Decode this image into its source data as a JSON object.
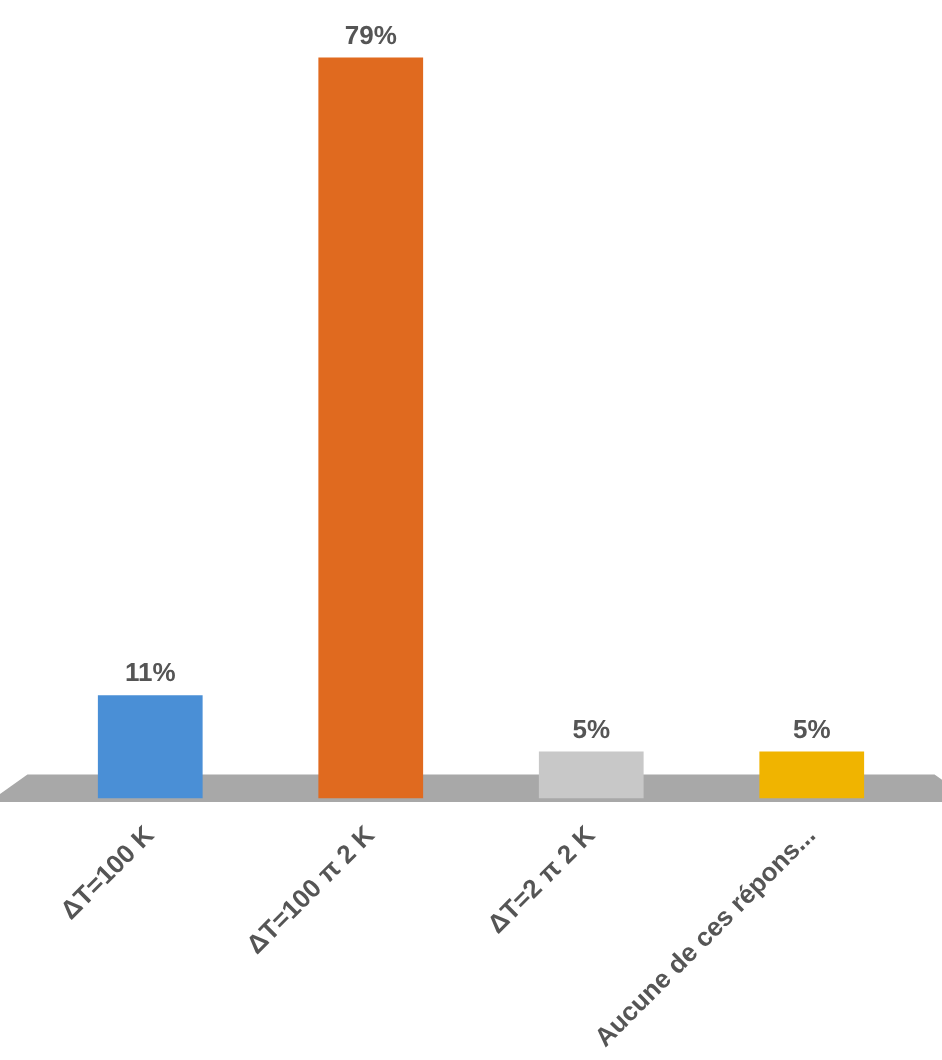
{
  "chart_data": {
    "type": "bar",
    "categories": [
      "ΔT=100 K",
      "ΔT=100 π 2 K",
      "ΔT=2 π 2 K",
      "Aucune de ces répons..."
    ],
    "values": [
      11,
      79,
      5,
      5
    ],
    "colors": [
      "#4a8fd6",
      "#e06a1f",
      "#c8c8c8",
      "#f0b400"
    ],
    "value_labels": [
      "11%",
      "79%",
      "5%",
      "5%"
    ],
    "grid": false,
    "legend": false
  }
}
